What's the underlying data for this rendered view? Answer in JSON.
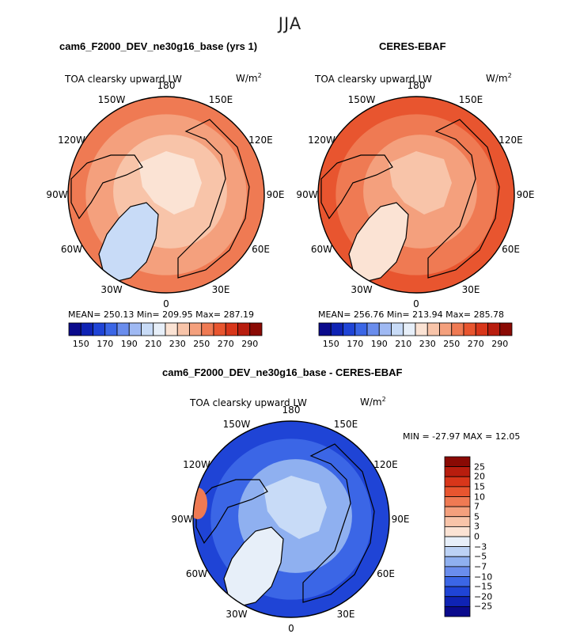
{
  "season": "JJA",
  "panels": [
    {
      "title": "cam6_F2000_DEV_ne30g16_base (yrs 1)",
      "variable": "TOA clearsky upward LW",
      "units_base": "W/m",
      "units_exp": "2",
      "stats": "MEAN= 250.13   Min= 209.95   Max= 287.19",
      "lon_labels": [
        "180",
        "150E",
        "120E",
        "90E",
        "60E",
        "30E",
        "0",
        "30W",
        "60W",
        "90W",
        "120W",
        "150W"
      ]
    },
    {
      "title": "CERES-EBAF",
      "variable": "TOA clearsky upward LW",
      "units_base": "W/m",
      "units_exp": "2",
      "stats": "MEAN= 256.76   Min= 213.94   Max= 285.78",
      "lon_labels": [
        "180",
        "150E",
        "120E",
        "90E",
        "60E",
        "30E",
        "0",
        "30W",
        "60W",
        "90W",
        "120W",
        "150W"
      ]
    },
    {
      "title": "cam6_F2000_DEV_ne30g16_base - CERES-EBAF",
      "variable": "TOA clearsky upward LW",
      "units_base": "W/m",
      "units_exp": "2",
      "stats": "MIN = -27.97 MAX =   12.05",
      "lon_labels": [
        "180",
        "150E",
        "120E",
        "90E",
        "60E",
        "30E",
        "0",
        "30W",
        "60W",
        "90W",
        "120W",
        "150W"
      ]
    }
  ],
  "chart_data": [
    {
      "type": "heatmap",
      "projection": "north polar stereographic",
      "title": "cam6_F2000_DEV_ne30g16_base (yrs 1)",
      "subtitle": "TOA clearsky upward LW",
      "units": "W/m2",
      "mean": 250.13,
      "min": 209.95,
      "max": 287.19,
      "colorbar_ticks": [
        "150",
        "170",
        "190",
        "210",
        "230",
        "250",
        "270",
        "290"
      ],
      "colorbar_colors": [
        "#0a0a8c",
        "#0f23b4",
        "#1f44d6",
        "#3b66e6",
        "#6a8ded",
        "#9fb9f3",
        "#c8dbf7",
        "#e7eff9",
        "#fbe3d4",
        "#f8c4a9",
        "#f4a07d",
        "#ef7a53",
        "#e8552f",
        "#d8361a",
        "#b81d0e",
        "#8a0a04"
      ]
    },
    {
      "type": "heatmap",
      "projection": "north polar stereographic",
      "title": "CERES-EBAF",
      "subtitle": "TOA clearsky upward LW",
      "units": "W/m2",
      "mean": 256.76,
      "min": 213.94,
      "max": 285.78,
      "colorbar_ticks": [
        "150",
        "170",
        "190",
        "210",
        "230",
        "250",
        "270",
        "290"
      ],
      "colorbar_colors": [
        "#0a0a8c",
        "#0f23b4",
        "#1f44d6",
        "#3b66e6",
        "#6a8ded",
        "#9fb9f3",
        "#c8dbf7",
        "#e7eff9",
        "#fbe3d4",
        "#f8c4a9",
        "#f4a07d",
        "#ef7a53",
        "#e8552f",
        "#d8361a",
        "#b81d0e",
        "#8a0a04"
      ]
    },
    {
      "type": "heatmap",
      "projection": "north polar stereographic",
      "title": "cam6_F2000_DEV_ne30g16_base - CERES-EBAF",
      "subtitle": "TOA clearsky upward LW",
      "units": "W/m2",
      "min": -27.97,
      "max": 12.05,
      "colorbar_ticks": [
        "25",
        "20",
        "15",
        "10",
        "7",
        "5",
        "3",
        "0",
        "-3",
        "-5",
        "-7",
        "-10",
        "-15",
        "-20",
        "-25"
      ],
      "colorbar_colors": [
        "#8a0a04",
        "#b81d0e",
        "#d8361a",
        "#e8552f",
        "#ef7a53",
        "#f4a07d",
        "#f8c4a9",
        "#fbe3d4",
        "#e7eff9",
        "#bcd2f5",
        "#8fb0f0",
        "#6a8ded",
        "#3b66e6",
        "#1f44d6",
        "#0f23b4",
        "#0a0a8c"
      ]
    }
  ]
}
